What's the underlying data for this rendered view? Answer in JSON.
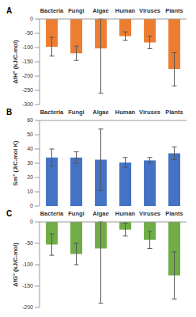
{
  "chart_data": [
    {
      "type": "bar",
      "title": "A",
      "ylabel": "ΔfH° (kJ/C-mol)",
      "categories": [
        "Bacteria",
        "Fungi",
        "Algae",
        "Human",
        "Viruses",
        "Plants"
      ],
      "values": [
        -97,
        -120,
        -103,
        -60,
        -82,
        -175
      ],
      "errors_minus": [
        33,
        25,
        157,
        15,
        22,
        60
      ],
      "errors_plus": [
        33,
        25,
        103,
        15,
        22,
        57
      ],
      "color": "#ed7d31",
      "ylim": [
        -300,
        0
      ],
      "yticks": [
        0,
        -50,
        -100,
        -150,
        -200,
        -250,
        -300
      ]
    },
    {
      "type": "bar",
      "title": "B",
      "ylabel": "Sm° (J/C-mol K)",
      "categories": [
        "Bacteria",
        "Fungi",
        "Algae",
        "Human",
        "Viruses",
        "Plants"
      ],
      "values": [
        34,
        34,
        32.5,
        30.5,
        32,
        37
      ],
      "errors_minus": [
        6,
        4,
        21.5,
        3.5,
        2,
        4.5
      ],
      "errors_plus": [
        6,
        4,
        21.5,
        3.5,
        2,
        4.5
      ],
      "color": "#4472c4",
      "ylim": [
        0,
        60
      ],
      "yticks": [
        0,
        10,
        20,
        30,
        40,
        50,
        60
      ]
    },
    {
      "type": "bar",
      "title": "C",
      "ylabel": "ΔfG° (kJ/C-mol)",
      "categories": [
        "Bacteria",
        "Fungi",
        "Algae",
        "Human",
        "Viruses",
        "Plants"
      ],
      "values": [
        -53,
        -75,
        -62,
        -18,
        -42,
        -125
      ],
      "errors_minus": [
        25,
        25,
        128,
        15,
        20,
        55
      ],
      "errors_plus": [
        25,
        25,
        62,
        15,
        20,
        55
      ],
      "color": "#70ad47",
      "ylim": [
        -200,
        0
      ],
      "yticks": [
        0,
        -50,
        -100,
        -150,
        -200
      ]
    }
  ]
}
